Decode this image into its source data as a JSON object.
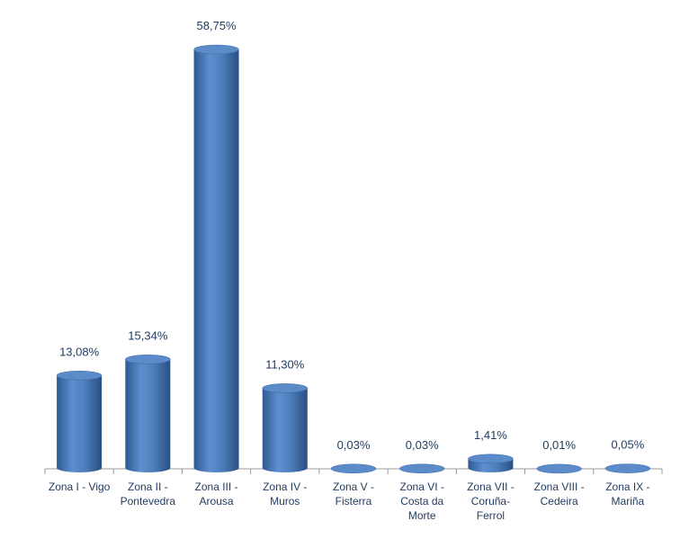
{
  "chart_data": {
    "type": "bar",
    "categories": [
      "Zona I - Vigo",
      "Zona II - Pontevedra",
      "Zona III - Arousa",
      "Zona IV - Muros",
      "Zona V - Fisterra",
      "Zona VI - Costa da Morte",
      "Zona VII - Coruña-Ferrol",
      "Zona VIII - Cedeira",
      "Zona IX - Mariña"
    ],
    "values": [
      13.08,
      15.34,
      58.75,
      11.3,
      0.03,
      0.03,
      1.41,
      0.01,
      0.05
    ],
    "value_labels": [
      "13,08%",
      "15,34%",
      "58,75%",
      "11,30%",
      "0,03%",
      "0,03%",
      "1,41%",
      "0,01%",
      "0,05%"
    ],
    "color": "#4f81bd"
  }
}
